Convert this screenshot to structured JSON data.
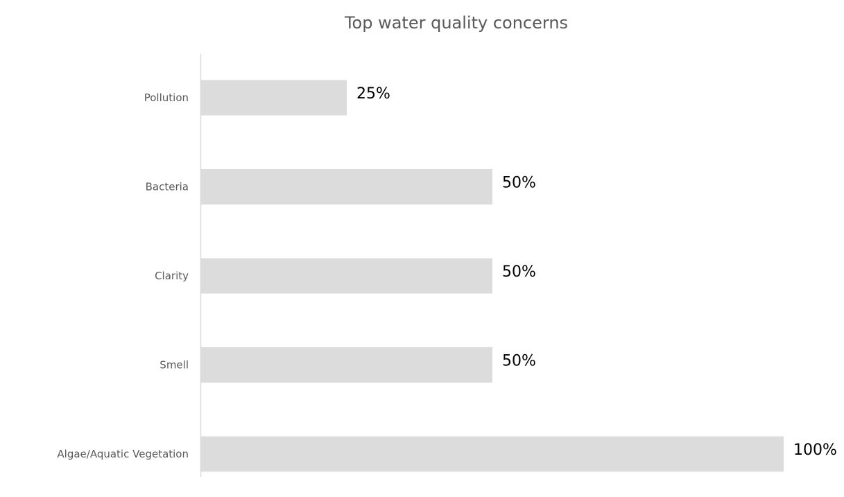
{
  "chart_data": {
    "type": "bar",
    "orientation": "horizontal",
    "title": "Top water quality concerns",
    "xlabel": "",
    "ylabel": "",
    "categories": [
      "Pollution",
      "Bacteria",
      "Clarity",
      "Smell",
      "Algae/Aquatic Vegetation"
    ],
    "values": [
      25,
      50,
      50,
      50,
      100
    ],
    "value_labels": [
      "25%",
      "50%",
      "50%",
      "50%",
      "100%"
    ],
    "xlim": [
      0,
      100
    ],
    "grid": false,
    "legend": "none",
    "colors": {
      "bar": "#dcdcdc",
      "axis": "#d9d9d9",
      "category_text": "#595959",
      "title_text": "#595959",
      "value_text": "#000000"
    }
  }
}
